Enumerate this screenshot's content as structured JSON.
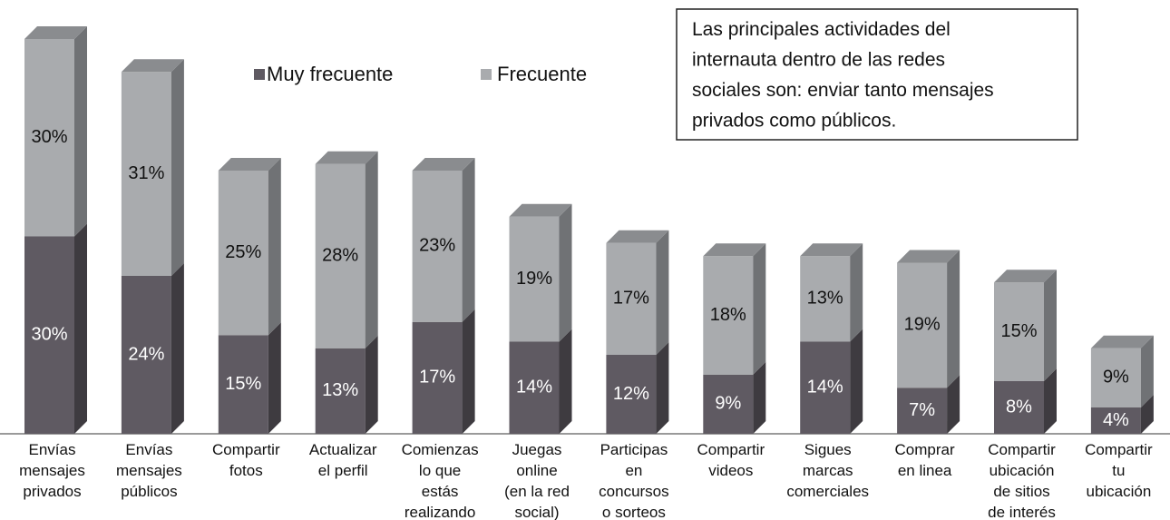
{
  "chart_data": {
    "type": "bar3d_stacked",
    "categories": [
      "Envías\nmensajes\nprivados",
      "Envías\nmensajes\npúblicos",
      "Compartir\nfotos",
      "Actualizar\nel perfil",
      "Comienzas\nlo que\nestás\nrealizando",
      "Juegas\nonline\n(en la red\nsocial)",
      "Participas\nen\nconcursos\no sorteos",
      "Compartir\nvideos",
      "Sigues\nmarcas\ncomerciales",
      "Comprar\nen linea",
      "Compartir\nubicación\nde sitios\nde interés",
      "Compartir\ntu\nubicación"
    ],
    "series": [
      {
        "name": "Muy frecuente",
        "color": "#5f5a62",
        "side": "#3e3b40",
        "top": "#4d494f",
        "label_color": "#ffffff",
        "values": [
          30,
          24,
          15,
          13,
          17,
          14,
          12,
          9,
          14,
          7,
          8,
          4
        ],
        "value_labels": [
          "30%",
          "24%",
          "15%",
          "13%",
          "17%",
          "14%",
          "12%",
          "9%",
          "14%",
          "7%",
          "8%",
          "4%"
        ]
      },
      {
        "name": "Frecuente",
        "color": "#a9abae",
        "side": "#707275",
        "top": "#8a8c8f",
        "label_color": "#111111",
        "values": [
          30,
          31,
          25,
          28,
          23,
          19,
          17,
          18,
          13,
          19,
          15,
          9
        ],
        "value_labels": [
          "30%",
          "31%",
          "25%",
          "28%",
          "23%",
          "19%",
          "17%",
          "18%",
          "13%",
          "19%",
          "15%",
          "9%"
        ]
      }
    ],
    "annotation": "Las principales actividades del\ninternauta dentro de las redes\nsociales son: enviar tanto mensajes\nprivados como públicos."
  }
}
